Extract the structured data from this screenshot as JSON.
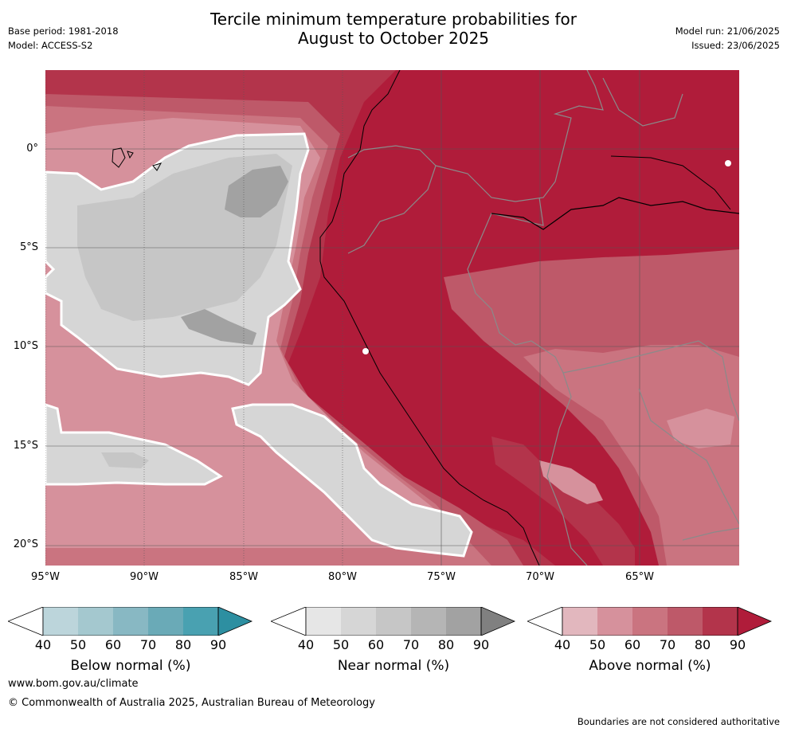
{
  "title_line1": "Tercile minimum temperature probabilities for",
  "title_line2": "August to October 2025",
  "base_period": "Base period: 1981-2018",
  "model": "Model: ACCESS-S2",
  "model_run": "Model run: 21/06/2025",
  "issued": "Issued: 23/06/2025",
  "lat_labels": [
    "0°",
    "5°S",
    "10°S",
    "15°S",
    "20°S"
  ],
  "lon_labels": [
    "95°W",
    "90°W",
    "85°W",
    "80°W",
    "75°W",
    "70°W",
    "65°W"
  ],
  "colorbars": [
    {
      "title": "Below normal (%)",
      "ticks": [
        "40",
        "50",
        "60",
        "70",
        "80",
        "90"
      ],
      "colors": [
        "#ffffff",
        "#bcd5db",
        "#a4c8cf",
        "#88b8c3",
        "#6aaab7",
        "#49a1b1",
        "#2d8fa1"
      ]
    },
    {
      "title": "Near normal (%)",
      "ticks": [
        "40",
        "50",
        "60",
        "70",
        "80",
        "90"
      ],
      "colors": [
        "#ffffff",
        "#e6e6e6",
        "#d6d6d6",
        "#c6c6c6",
        "#b5b5b5",
        "#a2a2a2",
        "#808080"
      ]
    },
    {
      "title": "Above normal (%)",
      "ticks": [
        "40",
        "50",
        "60",
        "70",
        "80",
        "90"
      ],
      "colors": [
        "#ffffff",
        "#e2b7be",
        "#d6919c",
        "#ca7480",
        "#be5969",
        "#b3344b",
        "#b01c3a"
      ]
    }
  ],
  "website": "www.bom.gov.au/climate",
  "copyright": "© Commonwealth of Australia 2025, Australian Bureau of Meteorology",
  "disclaimer": "Boundaries are not considered authoritative"
}
